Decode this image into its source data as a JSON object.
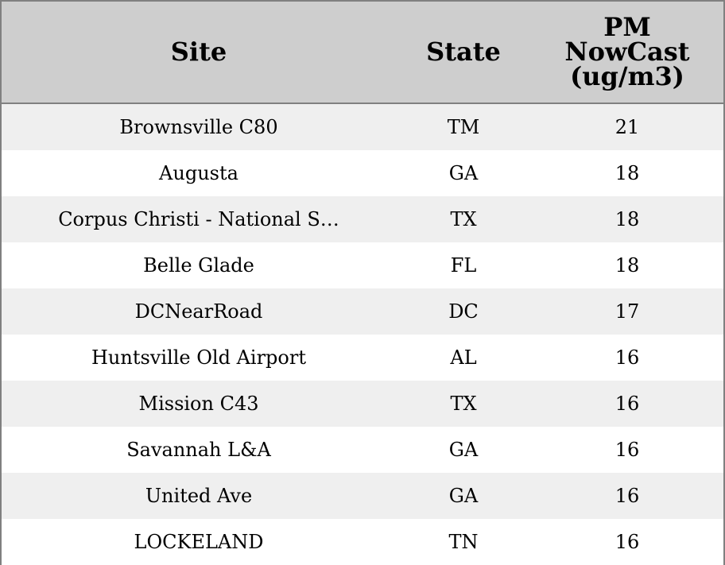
{
  "chart_data": {
    "type": "table",
    "columns": [
      "Site",
      "State",
      "PM\nNowCast\n(ug/m3)"
    ],
    "rows": [
      {
        "site": "Brownsville C80",
        "state": "TM",
        "pm": 21
      },
      {
        "site": "Augusta",
        "state": "GA",
        "pm": 18
      },
      {
        "site": "Corpus Christi - National S…",
        "state": "TX",
        "pm": 18
      },
      {
        "site": "Belle Glade",
        "state": "FL",
        "pm": 18
      },
      {
        "site": "DCNearRoad",
        "state": "DC",
        "pm": 17
      },
      {
        "site": "Huntsville Old Airport",
        "state": "AL",
        "pm": 16
      },
      {
        "site": "Mission C43",
        "state": "TX",
        "pm": 16
      },
      {
        "site": "Savannah L&A",
        "state": "GA",
        "pm": 16
      },
      {
        "site": "United Ave",
        "state": "GA",
        "pm": 16
      },
      {
        "site": "LOCKELAND",
        "state": "TN",
        "pm": 16
      }
    ]
  },
  "colors": {
    "header_bg": "#cecece",
    "row_alt_bg": "#efefef",
    "row_bg": "#ffffff",
    "border": "#808080"
  }
}
